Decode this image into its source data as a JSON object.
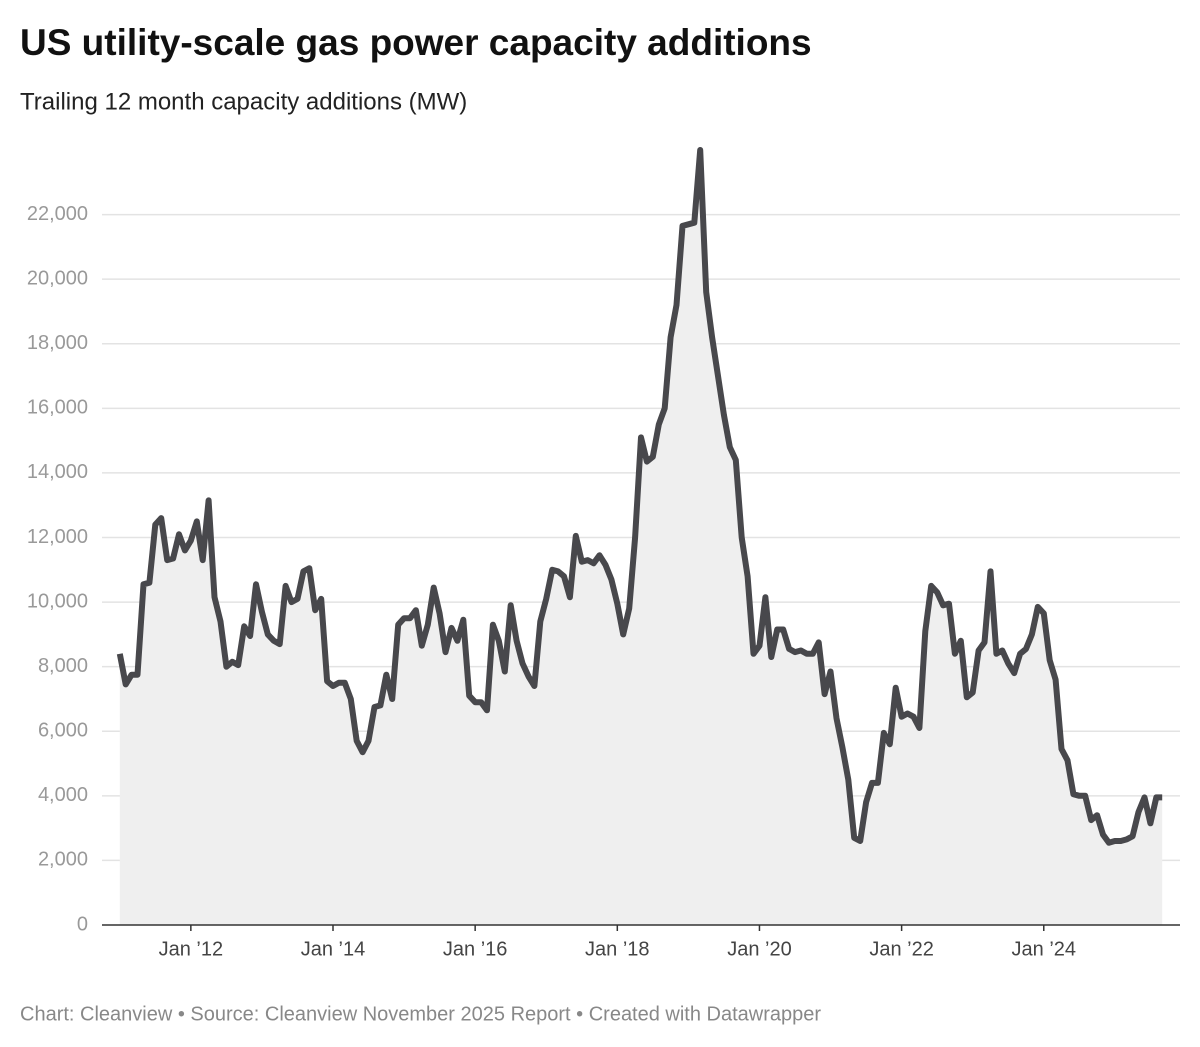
{
  "chart_data": {
    "type": "area",
    "title": "US utility-scale gas power capacity additions",
    "subtitle": "Trailing 12 month capacity additions (MW)",
    "footer": "Chart: Cleanview • Source: Cleanview November 2025 Report • Created with Datawrapper",
    "color": "#48484c",
    "fill": "#efefef",
    "grid": true,
    "x": [
      "2011-01",
      "2011-02",
      "2011-03",
      "2011-04",
      "2011-05",
      "2011-06",
      "2011-07",
      "2011-08",
      "2011-09",
      "2011-10",
      "2011-11",
      "2011-12",
      "2012-01",
      "2012-02",
      "2012-03",
      "2012-04",
      "2012-05",
      "2012-06",
      "2012-07",
      "2012-08",
      "2012-09",
      "2012-10",
      "2012-11",
      "2012-12",
      "2013-01",
      "2013-02",
      "2013-03",
      "2013-04",
      "2013-05",
      "2013-06",
      "2013-07",
      "2013-08",
      "2013-09",
      "2013-10",
      "2013-11",
      "2013-12",
      "2014-01",
      "2014-02",
      "2014-03",
      "2014-04",
      "2014-05",
      "2014-06",
      "2014-07",
      "2014-08",
      "2014-09",
      "2014-10",
      "2014-11",
      "2014-12",
      "2015-01",
      "2015-02",
      "2015-03",
      "2015-04",
      "2015-05",
      "2015-06",
      "2015-07",
      "2015-08",
      "2015-09",
      "2015-10",
      "2015-11",
      "2015-12",
      "2016-01",
      "2016-02",
      "2016-03",
      "2016-04",
      "2016-05",
      "2016-06",
      "2016-07",
      "2016-08",
      "2016-09",
      "2016-10",
      "2016-11",
      "2016-12",
      "2017-01",
      "2017-02",
      "2017-03",
      "2017-04",
      "2017-05",
      "2017-06",
      "2017-07",
      "2017-08",
      "2017-09",
      "2017-10",
      "2017-11",
      "2017-12",
      "2018-01",
      "2018-02",
      "2018-03",
      "2018-04",
      "2018-05",
      "2018-06",
      "2018-07",
      "2018-08",
      "2018-09",
      "2018-10",
      "2018-11",
      "2018-12",
      "2019-01",
      "2019-02",
      "2019-03",
      "2019-04",
      "2019-05",
      "2019-06",
      "2019-07",
      "2019-08",
      "2019-09",
      "2019-10",
      "2019-11",
      "2019-12",
      "2020-01",
      "2020-02",
      "2020-03",
      "2020-04",
      "2020-05",
      "2020-06",
      "2020-07",
      "2020-08",
      "2020-09",
      "2020-10",
      "2020-11",
      "2020-12",
      "2021-01",
      "2021-02",
      "2021-03",
      "2021-04",
      "2021-05",
      "2021-06",
      "2021-07",
      "2021-08",
      "2021-09",
      "2021-10",
      "2021-11",
      "2021-12",
      "2022-01",
      "2022-02",
      "2022-03",
      "2022-04",
      "2022-05",
      "2022-06",
      "2022-07",
      "2022-08",
      "2022-09",
      "2022-10",
      "2022-11",
      "2022-12",
      "2023-01",
      "2023-02",
      "2023-03",
      "2023-04",
      "2023-05",
      "2023-06",
      "2023-07",
      "2023-08",
      "2023-09",
      "2023-10",
      "2023-11",
      "2023-12",
      "2024-01",
      "2024-02",
      "2024-03",
      "2024-04",
      "2024-05",
      "2024-06",
      "2024-07",
      "2024-08",
      "2024-09",
      "2024-10",
      "2024-11",
      "2024-12",
      "2025-01",
      "2025-02",
      "2025-03",
      "2025-04",
      "2025-05",
      "2025-06",
      "2025-07",
      "2025-08",
      "2025-09"
    ],
    "values": [
      8400,
      7450,
      7750,
      7750,
      10550,
      10600,
      12400,
      12600,
      11300,
      11350,
      12100,
      11600,
      11900,
      12500,
      11300,
      13150,
      10150,
      9400,
      8000,
      8150,
      8050,
      9250,
      8950,
      10550,
      9700,
      9000,
      8800,
      8700,
      10500,
      10000,
      10100,
      10950,
      11050,
      9750,
      10100,
      7550,
      7400,
      7500,
      7500,
      7000,
      5700,
      5350,
      5700,
      6750,
      6800,
      7750,
      7000,
      9300,
      9500,
      9500,
      9750,
      8650,
      9300,
      10450,
      9650,
      8450,
      9200,
      8800,
      9450,
      7100,
      6900,
      6900,
      6650,
      9300,
      8800,
      7850,
      9900,
      8800,
      8100,
      7700,
      7400,
      9400,
      10100,
      11000,
      10950,
      10800,
      10150,
      12050,
      11250,
      11300,
      11200,
      11450,
      11150,
      10700,
      9950,
      9000,
      9800,
      12000,
      15100,
      14350,
      14500,
      15500,
      16000,
      18200,
      19200,
      21650,
      21700,
      21750,
      24000,
      19600,
      18200,
      17000,
      15800,
      14800,
      14400,
      12000,
      10800,
      8400,
      8650,
      10150,
      8300,
      9150,
      9150,
      8550,
      8450,
      8500,
      8400,
      8400,
      8750,
      7150,
      7850,
      6400,
      5500,
      4500,
      2700,
      2600,
      3800,
      4400,
      4400,
      5950,
      5600,
      7350,
      6450,
      6550,
      6450,
      6100,
      9100,
      10500,
      10300,
      9900,
      9950,
      8400,
      8800,
      7050,
      7200,
      8500,
      8750,
      10950,
      8400,
      8500,
      8100,
      7800,
      8400,
      8550,
      9000,
      9850,
      9650,
      8200,
      7600,
      5450,
      5100,
      4050,
      4000,
      4000,
      3250,
      3400,
      2800,
      2550,
      2600,
      2600,
      2650,
      2750,
      3500,
      3950,
      3150,
      3950,
      3950
    ],
    "xlim": [
      "2010-10",
      "2025-12"
    ],
    "xticks": [
      {
        "value": "2012-01",
        "label": "Jan ’12"
      },
      {
        "value": "2014-01",
        "label": "Jan ’14"
      },
      {
        "value": "2016-01",
        "label": "Jan ’16"
      },
      {
        "value": "2018-01",
        "label": "Jan ’18"
      },
      {
        "value": "2020-01",
        "label": "Jan ’20"
      },
      {
        "value": "2022-01",
        "label": "Jan ’22"
      },
      {
        "value": "2024-01",
        "label": "Jan ’24"
      }
    ],
    "ylim": [
      0,
      24000
    ],
    "yticks": [
      0,
      {
        "value": 2000,
        "label": "2,000"
      },
      {
        "value": 4000,
        "label": "4,000"
      },
      {
        "value": 6000,
        "label": "6,000"
      },
      {
        "value": 8000,
        "label": "8,000"
      },
      {
        "value": 10000,
        "label": "10,000"
      },
      {
        "value": 12000,
        "label": "12,000"
      },
      {
        "value": 14000,
        "label": "14,000"
      },
      {
        "value": 16000,
        "label": "16,000"
      },
      {
        "value": 18000,
        "label": "18,000"
      },
      {
        "value": 20000,
        "label": "20,000"
      },
      {
        "value": 22000,
        "label": "22,000"
      }
    ]
  }
}
